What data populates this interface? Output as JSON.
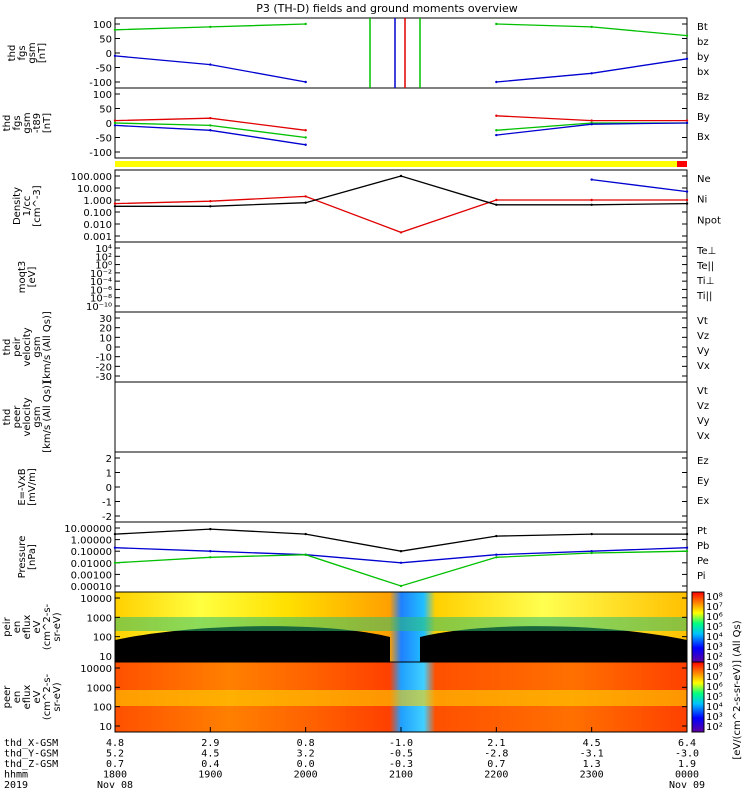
{
  "title": "P3 (TH-D) fields and ground moments overview",
  "panels": [
    {
      "id": "fgs",
      "ylabel": [
        "thd",
        "fgs",
        "gsm",
        "[nT]"
      ],
      "ticks": [
        "100",
        "50",
        "0",
        "-50",
        "-100"
      ],
      "legend": [
        {
          "name": "Bt",
          "color": "#000000"
        },
        {
          "name": "bz",
          "color": "#e00000"
        },
        {
          "name": "by",
          "color": "#00c000"
        },
        {
          "name": "bx",
          "color": "#0000d0"
        }
      ]
    },
    {
      "id": "fgs2",
      "ylabel": [
        "thd",
        "fgs",
        "gsm",
        "-t89",
        "[nT]"
      ],
      "ticks": [
        "100",
        "50",
        "0",
        "-50",
        "-100"
      ],
      "legend": [
        {
          "name": "Bz",
          "color": "#e00000"
        },
        {
          "name": "By",
          "color": "#00c000"
        },
        {
          "name": "Bx",
          "color": "#0000d0"
        }
      ]
    },
    {
      "id": "density",
      "ylabel": [
        "Density",
        "1/cc",
        "[cm^-3]"
      ],
      "ticks": [
        "100.000",
        "10.000",
        "1.000",
        "0.100",
        "0.010",
        "0.001"
      ],
      "legend": [
        {
          "name": "Ne",
          "color": "#e00000"
        },
        {
          "name": "Ni",
          "color": "#000000"
        },
        {
          "name": "Npot",
          "color": "#0000d0"
        }
      ]
    },
    {
      "id": "temp",
      "ylabel": [
        "moqt3",
        "[eV]"
      ],
      "ticks": [
        "10⁴",
        "10²",
        "10⁰",
        "10⁻²",
        "10⁻⁴",
        "10⁻⁶",
        "10⁻⁸",
        "10⁻¹⁰"
      ],
      "legend": [
        {
          "name": "Te⊥",
          "color": "#e00000"
        },
        {
          "name": "Te||",
          "color": "#000000"
        },
        {
          "name": "Ti⊥",
          "color": "#0000d0"
        },
        {
          "name": "Ti||",
          "color": "#00c000"
        }
      ]
    },
    {
      "id": "peir",
      "ylabel": [
        "thd",
        "peir",
        "velocity",
        "gsm",
        "[km/s (All Qs)]"
      ],
      "ticks": [
        "30",
        "20",
        "10",
        "0",
        "-10",
        "-20",
        "-30"
      ],
      "legend": [
        {
          "name": "Vt",
          "color": "#000000"
        },
        {
          "name": "Vz",
          "color": "#e00000"
        },
        {
          "name": "Vy",
          "color": "#00c000"
        },
        {
          "name": "Vx",
          "color": "#0000d0"
        }
      ]
    },
    {
      "id": "peer",
      "ylabel": [
        "thd",
        "peer",
        "velocity",
        "gsm",
        "[km/s (All Qs)]"
      ],
      "ticks": [],
      "legend": [
        {
          "name": "Vt",
          "color": "#000000"
        },
        {
          "name": "Vz",
          "color": "#e00000"
        },
        {
          "name": "Vy",
          "color": "#00c000"
        },
        {
          "name": "Vx",
          "color": "#0000d0"
        }
      ]
    },
    {
      "id": "exb",
      "ylabel": [
        "E=-VxB",
        "[mV/m]"
      ],
      "ticks": [
        "2",
        "1",
        "0",
        "-1",
        "-2"
      ],
      "legend": [
        {
          "name": "Ez",
          "color": "#e00000"
        },
        {
          "name": "Ey",
          "color": "#00c000"
        },
        {
          "name": "Ex",
          "color": "#0000d0"
        }
      ]
    },
    {
      "id": "pressure",
      "ylabel": [
        "Pressure",
        "[nPa]"
      ],
      "ticks": [
        "10.00000",
        "1.00000",
        "0.10000",
        "0.01000",
        "0.00100",
        "0.00010"
      ],
      "legend": [
        {
          "name": "Pt",
          "color": "#000000"
        },
        {
          "name": "Pb",
          "color": "#e00000"
        },
        {
          "name": "Pe",
          "color": "#00c000"
        },
        {
          "name": "Pi",
          "color": "#0000d0"
        }
      ]
    },
    {
      "id": "peir_spec",
      "ylabel": [
        "thd",
        "peir",
        "en",
        "eflux",
        "eV",
        "(cm^2-s-",
        "sr-eV)"
      ],
      "ticks": [
        "10000",
        "1000",
        "100",
        "10"
      ],
      "colorbar": [
        "10⁸",
        "10⁷",
        "10⁶",
        "10⁵",
        "10⁴",
        "10³",
        "10²"
      ],
      "cbar_label": "[eV/(cm^2-s-sr-eV)] (All Qs)"
    },
    {
      "id": "peer_spec",
      "ylabel": [
        "thd",
        "peer",
        "en",
        "eflux",
        "eV",
        "(cm^2-s-",
        "sr-eV)"
      ],
      "ticks": [
        "10000",
        "1000",
        "100",
        "10"
      ],
      "colorbar": [
        "10⁸",
        "10⁷",
        "10⁶",
        "10⁵",
        "10⁴",
        "10³",
        "10²"
      ],
      "cbar_label": "[eV/(cm^2-s-sr-eV)] (All Qs)"
    }
  ],
  "ephemeris": {
    "labels": [
      "thd_X-GSM",
      "thd_Y-GSM",
      "thd_Z-GSM",
      "hhmm",
      "2019"
    ],
    "columns": [
      {
        "x": "4.8",
        "y": "5.2",
        "z": "0.7",
        "t": "1800",
        "d": "Nov 08"
      },
      {
        "x": "2.9",
        "y": "4.5",
        "z": "0.4",
        "t": "1900",
        "d": ""
      },
      {
        "x": "0.8",
        "y": "3.2",
        "z": "0.0",
        "t": "2000",
        "d": ""
      },
      {
        "x": "-1.0",
        "y": "-0.5",
        "z": "-0.3",
        "t": "2100",
        "d": ""
      },
      {
        "x": "2.1",
        "y": "-2.8",
        "z": "0.7",
        "t": "2200",
        "d": ""
      },
      {
        "x": "4.5",
        "y": "-3.1",
        "z": "1.3",
        "t": "2300",
        "d": ""
      },
      {
        "x": "6.4",
        "y": "-3.0",
        "z": "1.9",
        "t": "0000",
        "d": "Nov 09"
      }
    ]
  },
  "chart_data": [
    {
      "type": "line",
      "title": "P3 (TH-D) fields and ground moments overview",
      "ylabel": "thd fgs gsm [nT]",
      "ylim": [
        -100,
        100
      ],
      "x": [
        "1800",
        "1900",
        "2000",
        "2100",
        "2200",
        "2300",
        "0000"
      ],
      "series": [
        {
          "name": "by",
          "values": [
            80,
            90,
            100,
            null,
            100,
            90,
            60
          ]
        },
        {
          "name": "bx",
          "values": [
            -10,
            -40,
            -100,
            null,
            -100,
            -70,
            -20
          ]
        }
      ]
    },
    {
      "type": "line",
      "ylabel": "thd fgs gsm -t89 [nT]",
      "ylim": [
        -120,
        120
      ],
      "x": [
        "1800",
        "1900",
        "2000",
        "2100",
        "2200",
        "2300",
        "0000"
      ],
      "series": [
        {
          "name": "Bz",
          "values": [
            10,
            20,
            -30,
            null,
            30,
            10,
            10
          ]
        },
        {
          "name": "By",
          "values": [
            0,
            -10,
            -60,
            null,
            -30,
            0,
            0
          ]
        },
        {
          "name": "Bx",
          "values": [
            -10,
            -30,
            -90,
            null,
            -50,
            -5,
            0
          ]
        }
      ]
    },
    {
      "type": "line",
      "ylabel": "Density 1/cc [cm^-3]",
      "scale": "log",
      "x": [
        "1800",
        "1900",
        "2000",
        "2100",
        "2200",
        "2300",
        "0000"
      ],
      "series": [
        {
          "name": "Ne",
          "values": [
            0.5,
            0.8,
            2,
            0.002,
            1,
            1,
            1
          ]
        },
        {
          "name": "Ni",
          "values": [
            0.3,
            0.3,
            0.6,
            100,
            0.4,
            0.4,
            0.5
          ]
        },
        {
          "name": "Npot",
          "values": [
            null,
            null,
            null,
            null,
            null,
            50,
            5
          ]
        }
      ]
    },
    {
      "type": "line",
      "ylabel": "Pressure [nPa]",
      "scale": "log",
      "x": [
        "1800",
        "1900",
        "2000",
        "2100",
        "2200",
        "2300",
        "0000"
      ],
      "series": [
        {
          "name": "Pt",
          "values": [
            3,
            8,
            3,
            0.1,
            2,
            3,
            3
          ]
        },
        {
          "name": "Pi",
          "values": [
            0.2,
            0.1,
            0.05,
            0.01,
            0.05,
            0.1,
            0.2
          ]
        },
        {
          "name": "Pe",
          "values": [
            0.01,
            0.03,
            0.05,
            0.0001,
            0.03,
            0.07,
            0.1
          ]
        }
      ]
    }
  ]
}
